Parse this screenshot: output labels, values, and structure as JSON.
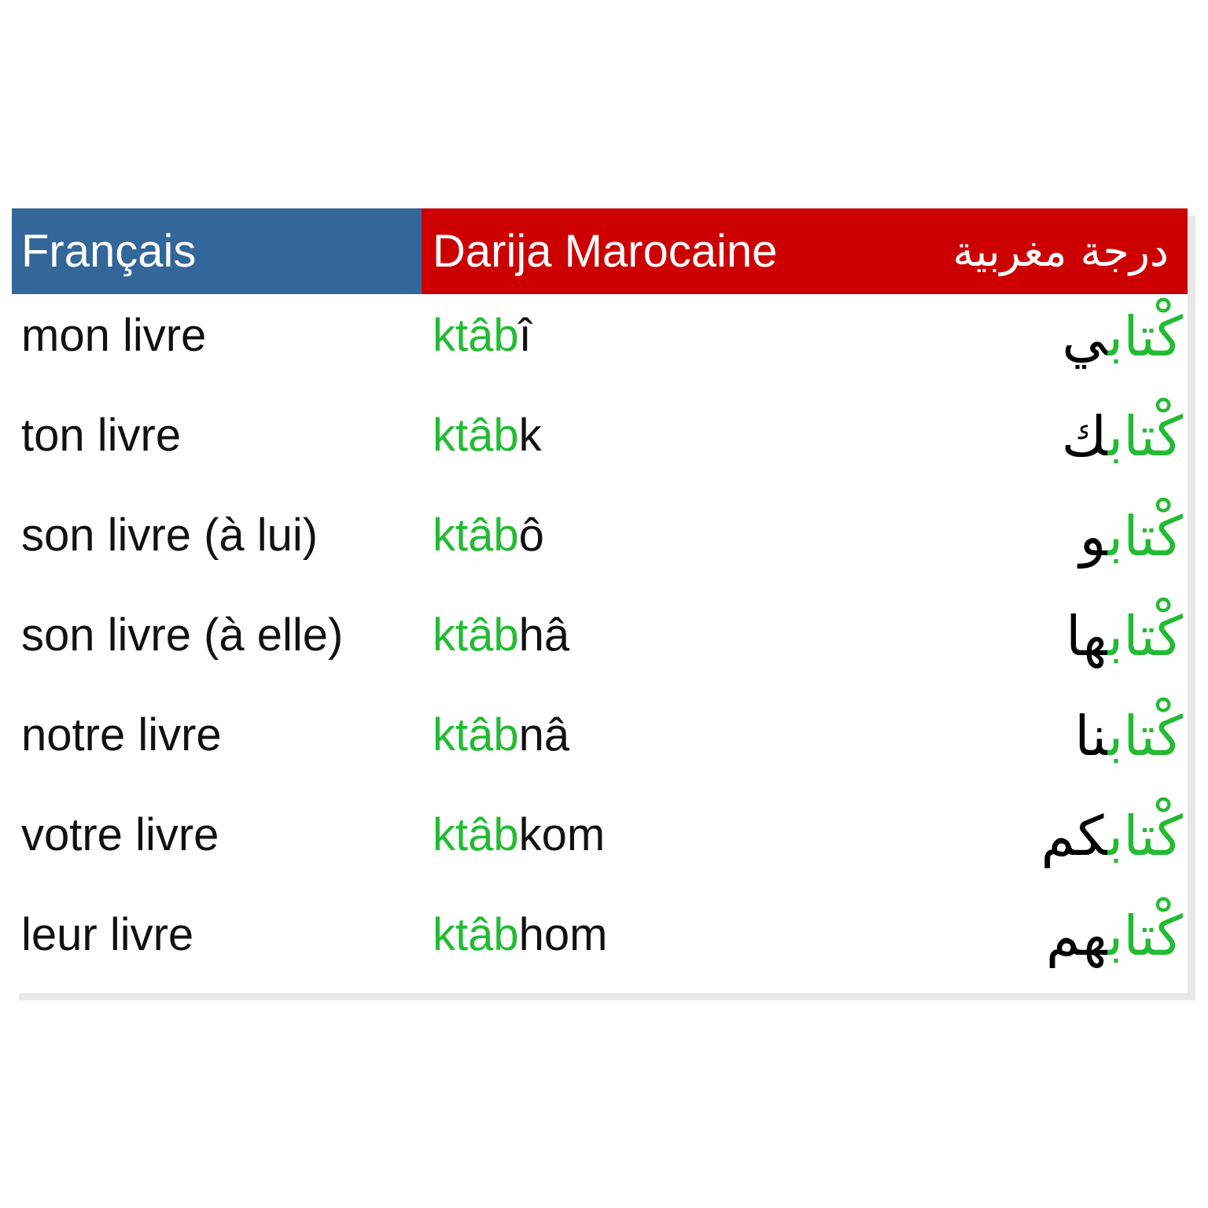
{
  "header": {
    "french": "Français",
    "darija": "Darija Marocaine",
    "arabic": "درجة مغربية"
  },
  "colors": {
    "french_header": "#336699",
    "darija_header": "#cc0000",
    "stem": "#22bb33"
  },
  "stem_latin": "ktâb",
  "stem_arabic": "كْتاب",
  "rows": [
    {
      "french": "mon livre",
      "suffix": "î",
      "suffix_ar": "ي"
    },
    {
      "french": "ton livre",
      "suffix": "k",
      "suffix_ar": "ك"
    },
    {
      "french": "son livre (à lui)",
      "suffix": "ô",
      "suffix_ar": "و"
    },
    {
      "french": "son livre (à elle)",
      "suffix": "hâ",
      "suffix_ar": "ها"
    },
    {
      "french": "notre livre",
      "suffix": "nâ",
      "suffix_ar": "نا"
    },
    {
      "french": "votre livre",
      "suffix": "kom",
      "suffix_ar": "كم"
    },
    {
      "french": "leur livre",
      "suffix": "hom",
      "suffix_ar": "هم"
    }
  ]
}
